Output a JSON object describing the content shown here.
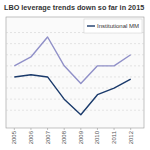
{
  "chart_data": {
    "type": "line",
    "title": "LBO leverage trends down so far in 2015",
    "x": [
      2005,
      2006,
      2007,
      2008,
      2009,
      2010,
      2011,
      2012
    ],
    "series": [
      {
        "color": "#9090c8",
        "values": [
          5.0,
          5.4,
          6.3,
          5.0,
          4.2,
          5.0,
          5.0,
          5.5
        ]
      },
      {
        "name": "Institutional MM",
        "color": "#1a3a6b",
        "values": [
          4.5,
          4.6,
          4.5,
          3.5,
          2.8,
          3.7,
          4.0,
          4.4
        ]
      }
    ],
    "xlim": [
      2004.5,
      2012.8
    ],
    "xticks": [
      2005,
      2006,
      2007,
      2008,
      2009,
      2010,
      2011,
      2012
    ],
    "ylim": [
      2.2,
      7.2
    ],
    "yticks": [
      3.0,
      3.5,
      4.0,
      4.5,
      5.0,
      5.5,
      6.0,
      6.5
    ],
    "grid": true,
    "legend": "upper right",
    "tick_labels": "x"
  }
}
